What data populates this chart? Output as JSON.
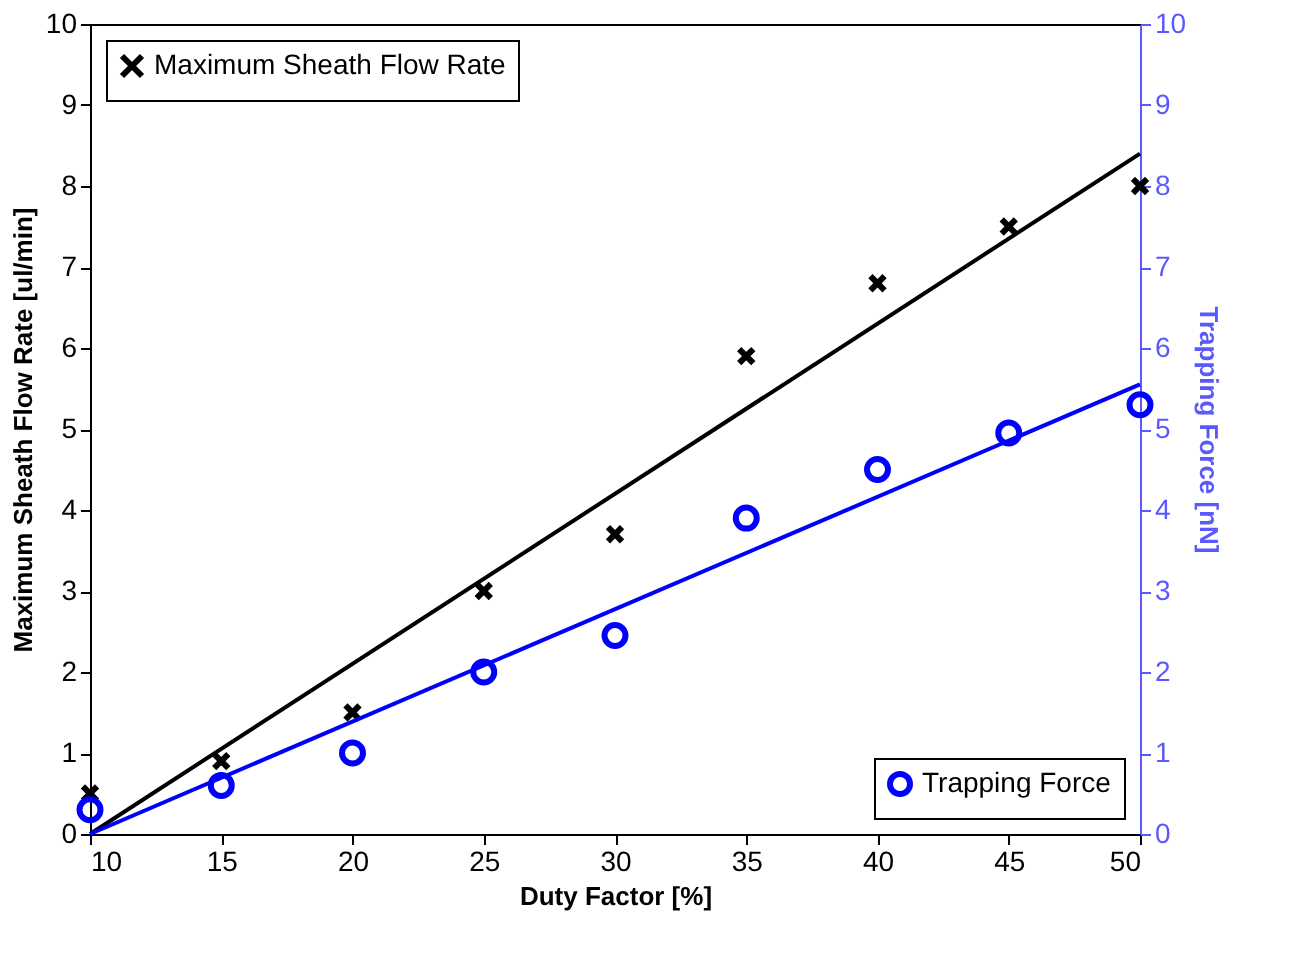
{
  "chart_data": {
    "type": "scatter",
    "xlabel": "Duty Factor [%]",
    "ylabel": "Maximum Sheath Flow Rate [ul/min]",
    "y2label": "Trapping Force [nN]",
    "xlim": [
      10,
      50
    ],
    "xticks": [
      10,
      15,
      20,
      25,
      30,
      35,
      40,
      45,
      50
    ],
    "ylim": [
      0,
      10
    ],
    "yticks": [
      0,
      1,
      2,
      3,
      4,
      5,
      6,
      7,
      8,
      9,
      10
    ],
    "y2lim": [
      0,
      10
    ],
    "y2ticks": [
      0,
      1,
      2,
      3,
      4,
      5,
      6,
      7,
      8,
      9,
      10
    ],
    "grid": false,
    "legend": [
      "top left",
      "bottom right"
    ],
    "series": [
      {
        "name": "Maximum Sheath Flow Rate",
        "marker": "cross",
        "color": "#000000",
        "axis": "y",
        "x": [
          10,
          15,
          20,
          25,
          30,
          35,
          40,
          45,
          50
        ],
        "values": [
          0.5,
          0.9,
          1.5,
          3.0,
          3.7,
          5.9,
          6.8,
          7.5,
          8.0
        ]
      },
      {
        "type": "line",
        "color": "#000000",
        "axis": "y",
        "x": [
          10,
          50
        ],
        "values": [
          0,
          8.4
        ]
      },
      {
        "name": "Trapping Force",
        "marker": "circle",
        "color": "#0000ff",
        "axis": "y2",
        "x": [
          10,
          15,
          20,
          25,
          30,
          35,
          40,
          45,
          50
        ],
        "values": [
          0.3,
          0.6,
          1.0,
          2.0,
          2.45,
          3.9,
          4.5,
          4.95,
          5.3
        ]
      },
      {
        "type": "line",
        "color": "#0000ff",
        "axis": "y2",
        "x": [
          10,
          50
        ],
        "values": [
          0,
          5.55
        ]
      }
    ]
  }
}
